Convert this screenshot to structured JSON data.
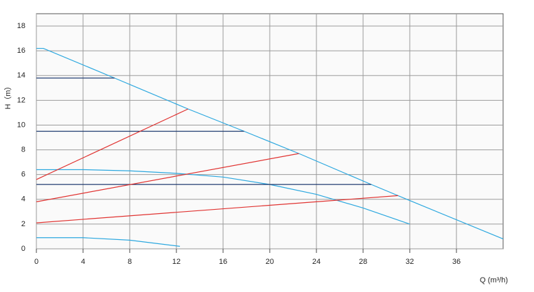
{
  "chart_data": {
    "type": "line",
    "xlabel": "Q (m³/h)",
    "ylabel": "H（m）",
    "xlim": [
      0,
      40
    ],
    "ylim": [
      0,
      19
    ],
    "xticks": [
      0,
      4,
      8,
      12,
      16,
      20,
      24,
      28,
      32,
      36
    ],
    "yticks": [
      0,
      2,
      4,
      6,
      8,
      10,
      12,
      14,
      16,
      18
    ],
    "grid": true,
    "series": [
      {
        "color": "#2aa7df",
        "x": [
          0,
          0.6,
          6.7,
          13,
          17.8,
          22.5,
          28.7,
          32,
          40
        ],
        "values": [
          16.2,
          16.2,
          13.8,
          11.3,
          9.5,
          7.7,
          5.2,
          3.9,
          0.8
        ]
      },
      {
        "color": "#2aa7df",
        "x": [
          0,
          4,
          8,
          12,
          16,
          20,
          24,
          28,
          32
        ],
        "values": [
          6.4,
          6.4,
          6.3,
          6.1,
          5.8,
          5.2,
          4.4,
          3.3,
          2.0
        ]
      },
      {
        "color": "#2aa7df",
        "x": [
          0,
          4,
          8,
          12.3
        ],
        "values": [
          0.9,
          0.9,
          0.7,
          0.2
        ]
      },
      {
        "color": "#1f3b70",
        "x": [
          0,
          6.7
        ],
        "values": [
          13.8,
          13.8
        ]
      },
      {
        "color": "#1f3b70",
        "x": [
          0,
          17.8
        ],
        "values": [
          9.5,
          9.5
        ]
      },
      {
        "color": "#1f3b70",
        "x": [
          0,
          28.7
        ],
        "values": [
          5.2,
          5.2
        ]
      },
      {
        "color": "#e0312f",
        "x": [
          0,
          13
        ],
        "values": [
          5.6,
          11.3
        ]
      },
      {
        "color": "#e0312f",
        "x": [
          0,
          22.5
        ],
        "values": [
          3.8,
          7.7
        ]
      },
      {
        "color": "#e0312f",
        "x": [
          0,
          31
        ],
        "values": [
          2.1,
          4.3
        ]
      }
    ]
  }
}
